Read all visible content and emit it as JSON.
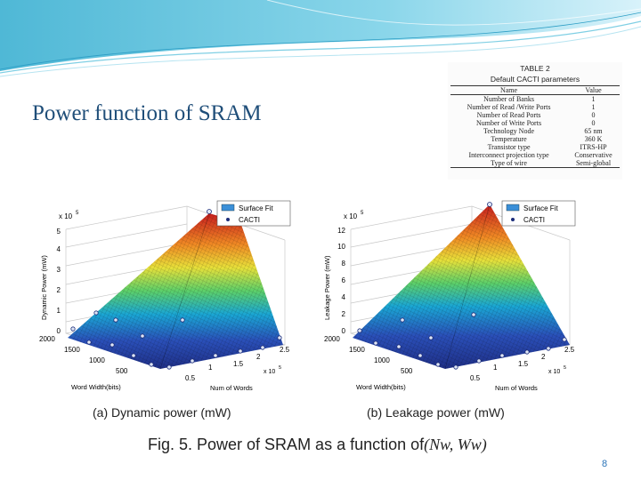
{
  "slide": {
    "title": "Power function of SRAM",
    "page_number": "8"
  },
  "table": {
    "caption_line1": "TABLE 2",
    "caption_line2": "Default CACTI parameters",
    "headers": [
      "Name",
      "Value"
    ],
    "rows": [
      [
        "Number of Banks",
        "1"
      ],
      [
        "Number of Read /Write Ports",
        "1"
      ],
      [
        "Number of Read Ports",
        "0"
      ],
      [
        "Number of Write Ports",
        "0"
      ],
      [
        "Technology Node",
        "65 nm"
      ],
      [
        "Temperature",
        "360 K"
      ],
      [
        "Transistor type",
        "ITRS-HP"
      ],
      [
        "Interconnect projection type",
        "Conservative"
      ],
      [
        "Type of wire",
        "Semi-global"
      ]
    ]
  },
  "plots": {
    "a": {
      "legend_fit": "Surface Fit",
      "legend_cacti": "CACTI",
      "exp_label": "x 10",
      "exp_power": "5",
      "zlabel": "Dynamic Power (mW)",
      "z_ticks": [
        "0",
        "1",
        "2",
        "3",
        "4",
        "5"
      ],
      "word_width_label": "Word Width(bits)",
      "word_width_ticks": [
        "2000",
        "1500",
        "1000",
        "500"
      ],
      "num_words_label": "Num of Words",
      "num_words_ticks": [
        "0.5",
        "1",
        "1.5",
        "2",
        "2.5"
      ],
      "num_words_exp": "x 10",
      "num_words_exp_power": "5",
      "caption": "(a) Dynamic power (mW)"
    },
    "b": {
      "legend_fit": "Surface Fit",
      "legend_cacti": "CACTI",
      "exp_label": "x 10",
      "exp_power": "5",
      "zlabel": "Leakage Power (mW)",
      "z_ticks": [
        "0",
        "2",
        "4",
        "6",
        "8",
        "10",
        "12"
      ],
      "word_width_label": "Word Width(bits)",
      "word_width_ticks": [
        "2000",
        "1500",
        "1000",
        "500"
      ],
      "num_words_label": "Num of Words",
      "num_words_ticks": [
        "0.5",
        "1",
        "1.5",
        "2",
        "2.5"
      ],
      "num_words_exp": "x 10",
      "num_words_exp_power": "5",
      "caption": "(b) Leakage power (mW)"
    }
  },
  "figure_caption": {
    "prefix": "Fig. 5.  Power of SRAM as a function of ",
    "math": "(Nw, Ww)"
  },
  "colors": {
    "title": "#1f4e79",
    "header_band": "#5fc3dc",
    "page_number": "#2b74b8"
  }
}
